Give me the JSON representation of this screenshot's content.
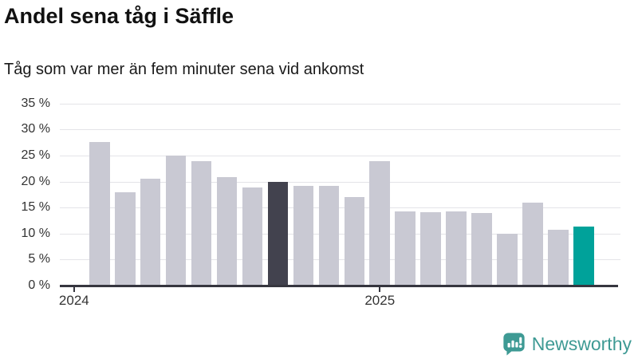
{
  "chart_data": {
    "type": "bar",
    "title": "Andel sena tåg i Säffle",
    "subtitle": "Tåg som var mer än fem minuter sena vid ankomst",
    "unit": "%",
    "ylim": [
      0,
      35
    ],
    "grid": true,
    "legend": null,
    "y_tick_values": [
      35,
      30,
      25,
      20,
      15,
      10,
      5,
      0
    ],
    "y_tick_labels": [
      "35 %",
      "30 %",
      "25 %",
      "20 %",
      "15 %",
      "10 %",
      "5 %",
      "0 %"
    ],
    "x_ticks": [
      {
        "label": "2024",
        "band_index": -1
      },
      {
        "label": "2025",
        "band_index": 11
      }
    ],
    "values": [
      27.6,
      17.9,
      20.6,
      25.0,
      23.9,
      20.8,
      18.9,
      19.9,
      19.2,
      19.2,
      17.0,
      23.9,
      14.2,
      14.1,
      14.3,
      13.9,
      9.9,
      15.9,
      10.7,
      11.4
    ],
    "highlight_dark_index": 7,
    "highlight_teal_index": 19,
    "colors": {
      "bar_default": "#c9c9d3",
      "bar_dark": "#42424e",
      "bar_teal": "#00a29a",
      "gridline": "#e4e4e8",
      "axis": "#36363f",
      "tick_text": "#333333",
      "title_text": "#111111"
    }
  },
  "footer": {
    "brand": "Newsworthy",
    "brand_color": "#3e9a94",
    "logo_icon": "bar-chart-speech-bubble"
  }
}
